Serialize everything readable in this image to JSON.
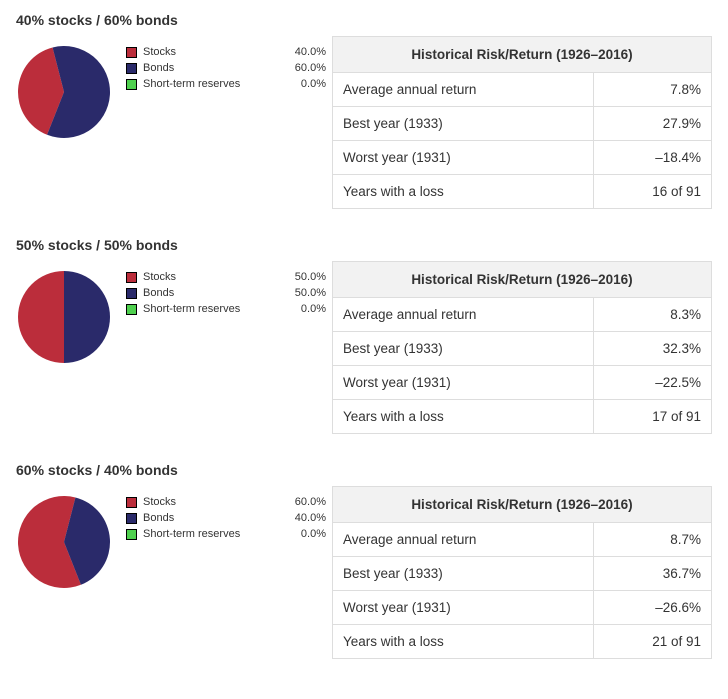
{
  "colors": {
    "stocks": "#bb2d3b",
    "bonds": "#2a2a6a",
    "reserves": "#4fd04f",
    "table_header_bg": "#f2f2f2",
    "table_border": "#dddddd",
    "swatch_border": "#000000"
  },
  "legend_labels": {
    "stocks": "Stocks",
    "bonds": "Bonds",
    "reserves": "Short-term reserves"
  },
  "table_header": "Historical Risk/Return (1926–2016)",
  "row_labels": {
    "avg": "Average annual return",
    "best": "Best year (1933)",
    "worst": "Worst year (1931)",
    "loss": "Years with a loss"
  },
  "pie_style": {
    "radius": 46,
    "stroke_width": 0
  },
  "portfolios": [
    {
      "title": "40% stocks / 60% bonds",
      "allocation": {
        "stocks": 40.0,
        "bonds": 60.0,
        "reserves": 0.0
      },
      "allocation_display": {
        "stocks": "40.0%",
        "bonds": "60.0%",
        "reserves": "0.0%"
      },
      "start_angle_deg": 201.6,
      "stats": {
        "avg": "7.8%",
        "best": "27.9%",
        "worst": "–18.4%",
        "loss": "16 of 91"
      }
    },
    {
      "title": "50% stocks / 50% bonds",
      "allocation": {
        "stocks": 50.0,
        "bonds": 50.0,
        "reserves": 0.0
      },
      "allocation_display": {
        "stocks": "50.0%",
        "bonds": "50.0%",
        "reserves": "0.0%"
      },
      "start_angle_deg": 180,
      "stats": {
        "avg": "8.3%",
        "best": "32.3%",
        "worst": "–22.5%",
        "loss": "17 of 91"
      }
    },
    {
      "title": "60% stocks / 40% bonds",
      "allocation": {
        "stocks": 60.0,
        "bonds": 40.0,
        "reserves": 0.0
      },
      "allocation_display": {
        "stocks": "60.0%",
        "bonds": "40.0%",
        "reserves": "0.0%"
      },
      "start_angle_deg": 158.4,
      "stats": {
        "avg": "8.7%",
        "best": "36.7%",
        "worst": "–26.6%",
        "loss": "21 of 91"
      }
    }
  ]
}
